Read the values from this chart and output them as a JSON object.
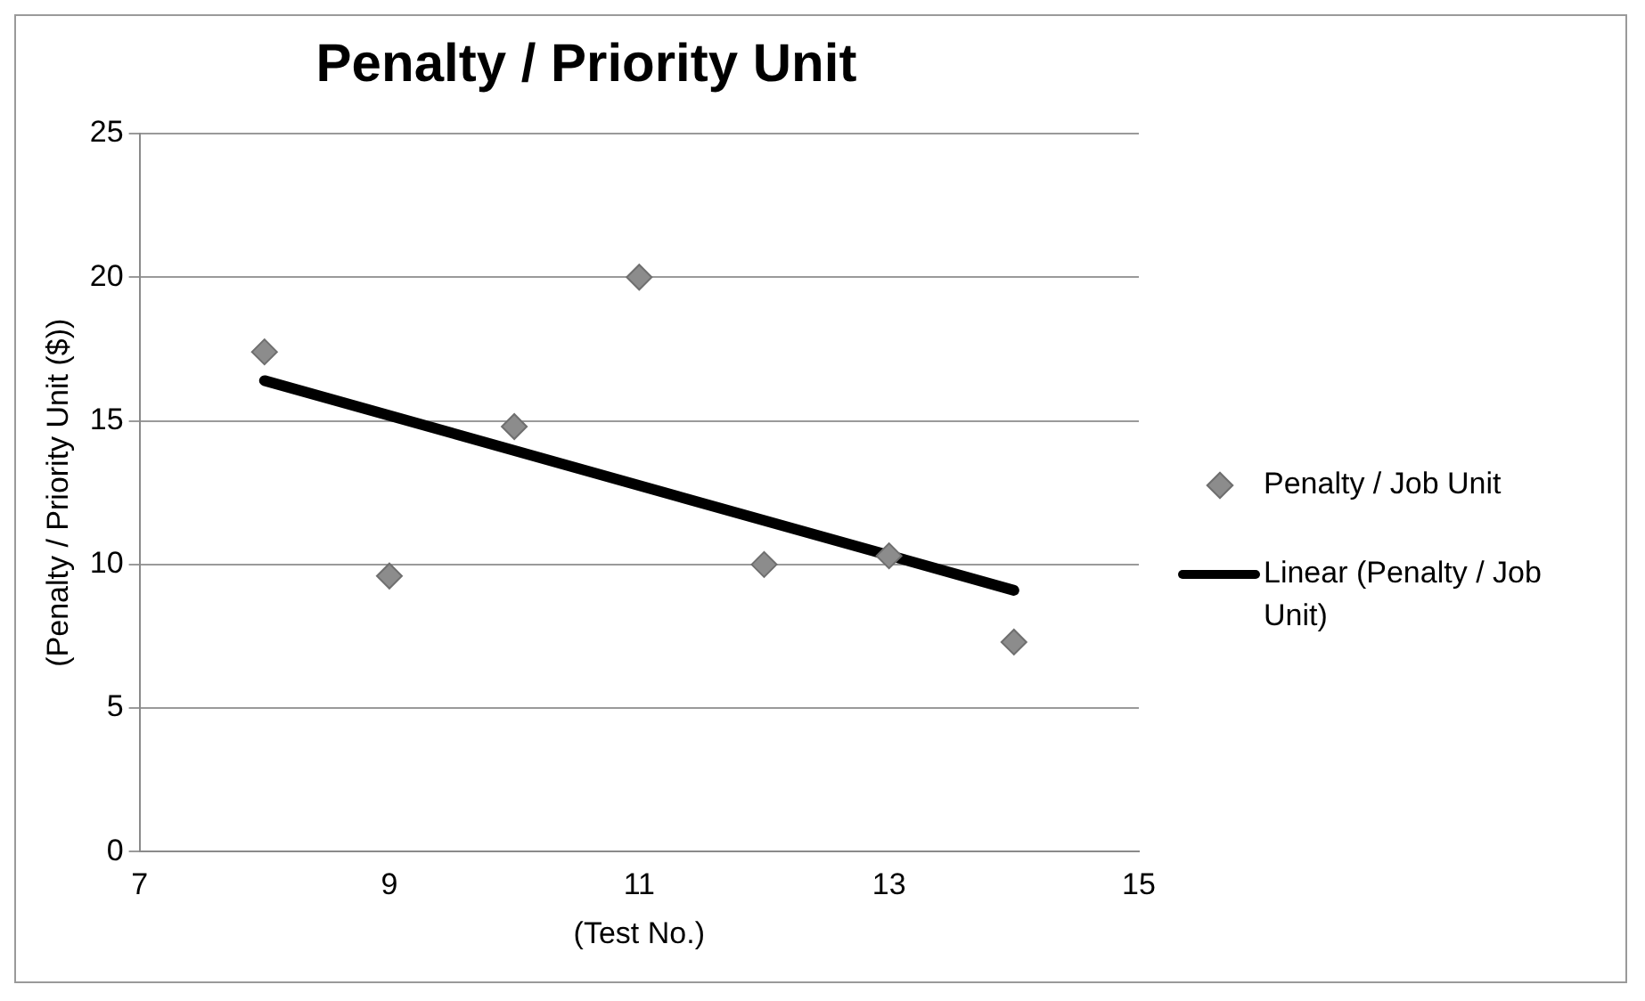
{
  "chart_data": {
    "type": "scatter",
    "title": "Penalty / Priority Unit",
    "xlabel": "(Test No.)",
    "ylabel": "(Penalty / Priority Unit ($))",
    "series": [
      {
        "name": "Penalty / Job Unit",
        "color": "#8c8c8c",
        "marker": "diamond",
        "x": [
          8,
          9,
          10,
          11,
          12,
          13,
          14
        ],
        "values": [
          17.4,
          9.6,
          14.8,
          20,
          10,
          10.3,
          7.3
        ]
      },
      {
        "name": "Linear (Penalty / Job Unit)",
        "type": "line",
        "color": "#000000",
        "marker": "none",
        "x": [
          8,
          14
        ],
        "values": [
          16.4,
          9.1
        ]
      }
    ],
    "xlim": [
      7,
      15
    ],
    "xticks": [
      7,
      9,
      11,
      13,
      15
    ],
    "ylim": [
      0,
      25
    ],
    "yticks": [
      0,
      5,
      10,
      15,
      20,
      25
    ],
    "grid": "y",
    "legend": "right"
  }
}
